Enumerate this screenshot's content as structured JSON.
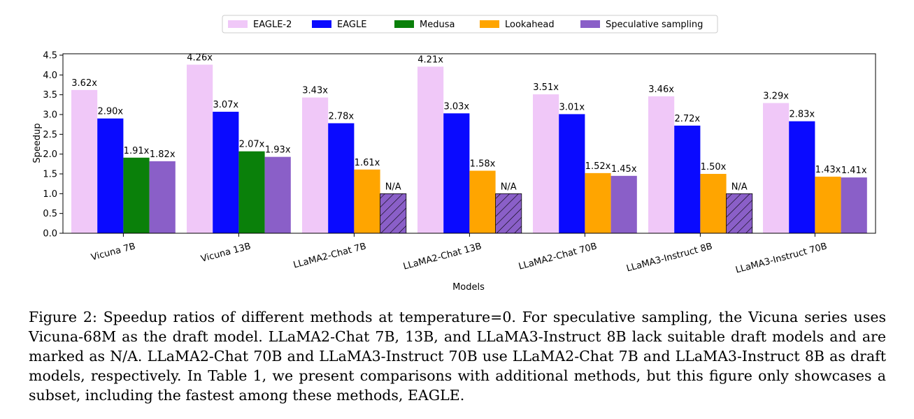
{
  "chart_data": {
    "type": "bar",
    "title": "",
    "xlabel": "Models",
    "ylabel": "Speedup",
    "ylim": [
      0,
      4.5
    ],
    "yticks": [
      "0.0",
      "0.5",
      "1.0",
      "1.5",
      "2.0",
      "2.5",
      "3.0",
      "3.5",
      "4.0",
      "4.5"
    ],
    "legend_position": "top-center",
    "categories": [
      "Vicuna 7B",
      "Vicuna 13B",
      "LLaMA2-Chat 7B",
      "LLaMA2-Chat 13B",
      "LLaMA2-Chat 70B",
      "LLaMA3-Instruct 8B",
      "LLaMA3-Instruct 70B"
    ],
    "series": [
      {
        "name": "EAGLE-2",
        "color": "#f0c8f8",
        "values": [
          3.62,
          4.26,
          3.43,
          4.21,
          3.51,
          3.46,
          3.29
        ],
        "labels": [
          "3.62x",
          "4.26x",
          "3.43x",
          "4.21x",
          "3.51x",
          "3.46x",
          "3.29x"
        ]
      },
      {
        "name": "EAGLE",
        "color": "#0a0aff",
        "values": [
          2.9,
          3.07,
          2.78,
          3.03,
          3.01,
          2.72,
          2.83
        ],
        "labels": [
          "2.90x",
          "3.07x",
          "2.78x",
          "3.03x",
          "3.01x",
          "2.72x",
          "2.83x"
        ]
      },
      {
        "name": "Medusa",
        "color": "#0a800a",
        "values": [
          1.91,
          2.07,
          null,
          null,
          null,
          null,
          null
        ],
        "labels": [
          "1.91x",
          "2.07x",
          null,
          null,
          null,
          null,
          null
        ]
      },
      {
        "name": "Lookahead",
        "color": "#ffa500",
        "values": [
          null,
          null,
          1.61,
          1.58,
          1.52,
          1.5,
          1.43
        ],
        "labels": [
          null,
          null,
          "1.61x",
          "1.58x",
          "1.52x",
          "1.50x",
          "1.43x"
        ]
      },
      {
        "name": "Speculative sampling",
        "color": "#8a5fc8",
        "values": [
          1.82,
          1.93,
          1.0,
          1.0,
          1.45,
          1.0,
          1.41
        ],
        "labels": [
          "1.82x",
          "1.93x",
          "N/A",
          "N/A",
          "1.45x",
          "N/A",
          "1.41x"
        ],
        "na": [
          false,
          false,
          true,
          true,
          false,
          true,
          false
        ]
      }
    ]
  },
  "caption": "Figure 2: Speedup ratios of different methods at temperature=0. For speculative sampling, the Vicuna series uses Vicuna-68M as the draft model. LLaMA2-Chat 7B, 13B, and LLaMA3-Instruct 8B lack suitable draft models and are marked as N/A. LLaMA2-Chat 70B and LLaMA3-Instruct 70B use LLaMA2-Chat 7B and LLaMA3-Instruct 8B as draft models, respectively. In Table 1, we present comparisons with additional methods, but this figure only showcases a subset, including the fastest among these methods, EAGLE."
}
